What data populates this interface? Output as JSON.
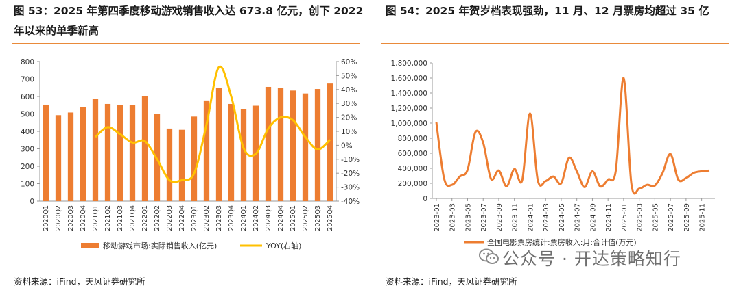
{
  "left_panel": {
    "title": "图 53：2025 年第四季度移动游戏销售收入达 673.8 亿元，创下 2022 年以来的单季新高",
    "source": "资料来源：iFind，天风证券研究所"
  },
  "right_panel": {
    "title": "图 54：2025 年贺岁档表现强劲，11 月、12 月票房均超过 35 亿",
    "source": "资料来源：iFind，天风证券研究所"
  },
  "watermark": "公众号 · 开达策略知行",
  "colors": {
    "bar": "#ed7d31",
    "yoy_line": "#ffc000",
    "rule": "#e98a3a",
    "box_line": "#ed7d31"
  },
  "chart_data": [
    {
      "type": "bar",
      "title": "",
      "categories": [
        "2020Q1",
        "2020Q2",
        "2020Q3",
        "2020Q4",
        "2021Q1",
        "2021Q2",
        "2021Q3",
        "2021Q4",
        "2022Q1",
        "2022Q2",
        "2022Q3",
        "2022Q4",
        "2023Q1",
        "2023Q2",
        "2023Q3",
        "2023Q4",
        "2024Q1",
        "2024Q2",
        "2024Q3",
        "2024Q4",
        "2025Q1",
        "2025Q2",
        "2025Q3",
        "2025Q4"
      ],
      "series": [
        {
          "name": "移动游戏市场:实际销售收入(亿元)",
          "type": "bar",
          "axis": "left",
          "values": [
            553,
            493,
            508,
            540,
            585,
            557,
            552,
            551,
            603,
            500,
            416,
            409,
            485,
            577,
            648,
            557,
            528,
            547,
            655,
            648,
            634,
            617,
            643,
            674
          ]
        },
        {
          "name": "YOY(右轴)",
          "type": "line",
          "axis": "right",
          "values": [
            null,
            null,
            null,
            null,
            6,
            13,
            8,
            2,
            3,
            -10,
            -25,
            -25,
            -20,
            15,
            56,
            35,
            -2,
            -6,
            12,
            20,
            18,
            6,
            -3,
            4
          ]
        }
      ],
      "ylim": [
        0,
        800
      ],
      "yticks": [
        0,
        100,
        200,
        300,
        400,
        500,
        600,
        700,
        800
      ],
      "y2lim": [
        -40,
        60
      ],
      "y2ticks": [
        "-40%",
        "-30%",
        "-20%",
        "-10%",
        "0%",
        "10%",
        "20%",
        "30%",
        "40%",
        "50%",
        "60%"
      ],
      "y2tick_values": [
        -40,
        -30,
        -20,
        -10,
        0,
        10,
        20,
        30,
        40,
        50,
        60
      ],
      "legend": [
        "移动游戏市场:实际销售收入(亿元)",
        "YOY(右轴)"
      ],
      "legend_position": "bottom"
    },
    {
      "type": "line",
      "title": "",
      "x": [
        "2023-01",
        "2023-02",
        "2023-03",
        "2023-04",
        "2023-05",
        "2023-06",
        "2023-07",
        "2023-08",
        "2023-09",
        "2023-10",
        "2023-11",
        "2023-12",
        "2024-01",
        "2024-02",
        "2024-03",
        "2024-04",
        "2024-05",
        "2024-06",
        "2024-07",
        "2024-08",
        "2024-09",
        "2024-10",
        "2024-11",
        "2024-12",
        "2025-01",
        "2025-02",
        "2025-03",
        "2025-04",
        "2025-05",
        "2025-06",
        "2025-07",
        "2025-08",
        "2025-09",
        "2025-10",
        "2025-11",
        "2025-12"
      ],
      "xtick_labels": [
        "2023-01",
        "2023-03",
        "2023-05",
        "2023-07",
        "2023-09",
        "2023-11",
        "2024-01",
        "2024-03",
        "2024-05",
        "2024-07",
        "2024-09",
        "2024-11",
        "2025-01",
        "2025-03",
        "2025-05",
        "2025-07",
        "2025-09",
        "2025-11"
      ],
      "series": [
        {
          "name": "全国电影票房统计:票房收入:月:合计值(万元)",
          "values": [
            1010000,
            260000,
            180000,
            290000,
            380000,
            880000,
            740000,
            260000,
            370000,
            160000,
            390000,
            240000,
            1130000,
            240000,
            230000,
            290000,
            200000,
            540000,
            360000,
            150000,
            360000,
            160000,
            250000,
            370000,
            1600000,
            190000,
            130000,
            180000,
            170000,
            340000,
            590000,
            250000,
            270000,
            340000,
            360000,
            370000
          ]
        }
      ],
      "ylim": [
        0,
        1800000
      ],
      "yticks": [
        "0",
        "200,000",
        "400,000",
        "600,000",
        "800,000",
        "1,000,000",
        "1,200,000",
        "1,400,000",
        "1,600,000",
        "1,800,000"
      ],
      "ytick_values": [
        0,
        200000,
        400000,
        600000,
        800000,
        1000000,
        1200000,
        1400000,
        1600000,
        1800000
      ],
      "legend": [
        "全国电影票房统计:票房收入:月:合计值(万元)"
      ],
      "legend_position": "bottom"
    }
  ]
}
